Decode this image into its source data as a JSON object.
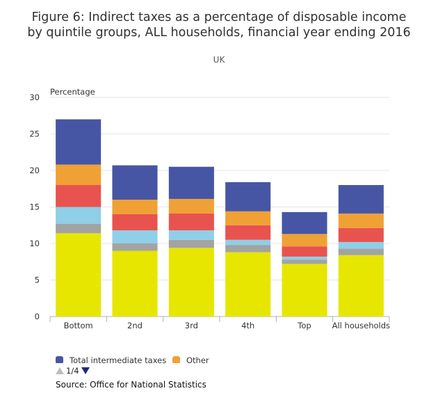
{
  "title_line1": "Figure 6: Indirect taxes as a percentage of disposable income",
  "title_line2": "by quintile groups, ALL households, financial year ending 2016",
  "subtitle": "UK",
  "legend": {
    "items": [
      {
        "label": "Total intermediate taxes",
        "color": "#4756a4"
      },
      {
        "label": "Other",
        "color": "#f0a135"
      }
    ],
    "page": "1/4"
  },
  "source": "Source: Office for National Statistics",
  "chart_data": {
    "type": "bar",
    "stacked": true,
    "title": "Figure 6: Indirect taxes as a percentage of disposable income by quintile groups, ALL households, financial year ending 2016",
    "ylabel": "Percentage",
    "xlabel": "",
    "ylim": [
      0,
      30
    ],
    "yticks": [
      0,
      5,
      10,
      15,
      20,
      25,
      30
    ],
    "grid": true,
    "legend_position": "bottom",
    "categories": [
      "Bottom",
      "2nd",
      "3rd",
      "4th",
      "Top",
      "All households"
    ],
    "series": [
      {
        "color": "#e6e600",
        "values": [
          11.4,
          9.0,
          9.4,
          8.8,
          7.2,
          8.4
        ]
      },
      {
        "color": "#a3a3a3",
        "values": [
          1.3,
          1.0,
          1.1,
          1.0,
          0.6,
          0.9
        ]
      },
      {
        "color": "#8fcfe7",
        "values": [
          2.3,
          1.8,
          1.3,
          0.7,
          0.4,
          0.9
        ]
      },
      {
        "color": "#e8534f",
        "values": [
          3.0,
          2.2,
          2.3,
          2.0,
          1.4,
          1.9
        ]
      },
      {
        "name": "Other",
        "color": "#f0a135",
        "values": [
          2.8,
          2.0,
          2.0,
          1.9,
          1.7,
          2.0
        ]
      },
      {
        "name": "Total intermediate taxes",
        "color": "#4756a4",
        "values": [
          6.2,
          4.7,
          4.4,
          4.0,
          3.0,
          3.9
        ]
      }
    ]
  }
}
